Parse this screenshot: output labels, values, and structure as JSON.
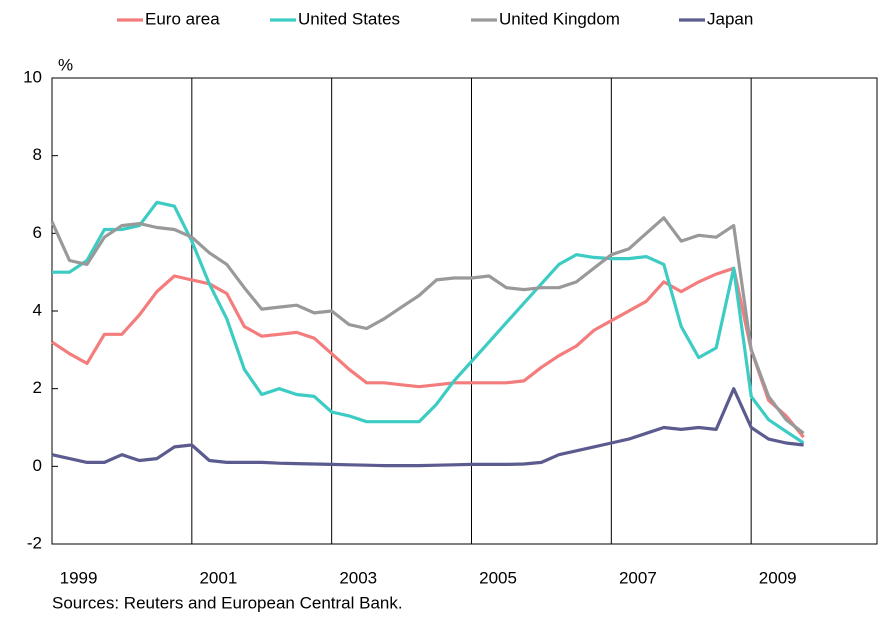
{
  "chart_data": {
    "type": "line",
    "ylabel": "%",
    "source": "Sources: Reuters and European Central Bank.",
    "x": [
      1999.0,
      1999.25,
      1999.5,
      1999.75,
      2000.0,
      2000.25,
      2000.5,
      2000.75,
      2001.0,
      2001.25,
      2001.5,
      2001.75,
      2002.0,
      2002.25,
      2002.5,
      2002.75,
      2003.0,
      2003.25,
      2003.5,
      2003.75,
      2004.0,
      2004.25,
      2004.5,
      2004.75,
      2005.0,
      2005.25,
      2005.5,
      2005.75,
      2006.0,
      2006.25,
      2006.5,
      2006.75,
      2007.0,
      2007.25,
      2007.5,
      2007.75,
      2008.0,
      2008.25,
      2008.5,
      2008.75,
      2009.0,
      2009.25,
      2009.5,
      2009.75
    ],
    "series": [
      {
        "name": "Euro area",
        "color": "#f47c7c",
        "values": [
          3.2,
          2.9,
          2.65,
          3.4,
          3.4,
          3.9,
          4.5,
          4.9,
          4.8,
          4.7,
          4.45,
          3.6,
          3.35,
          3.4,
          3.45,
          3.3,
          2.9,
          2.5,
          2.15,
          2.15,
          2.1,
          2.05,
          2.1,
          2.15,
          2.15,
          2.15,
          2.15,
          2.2,
          2.55,
          2.85,
          3.1,
          3.5,
          3.75,
          4.0,
          4.25,
          4.75,
          4.5,
          4.75,
          4.95,
          5.1,
          3.0,
          1.7,
          1.3,
          0.75
        ]
      },
      {
        "name": "United States",
        "color": "#3cccc4",
        "values": [
          5.0,
          5.0,
          5.3,
          6.1,
          6.1,
          6.2,
          6.8,
          6.7,
          5.8,
          4.7,
          3.8,
          2.5,
          1.85,
          2.0,
          1.85,
          1.8,
          1.4,
          1.3,
          1.15,
          1.15,
          1.15,
          1.15,
          1.6,
          2.2,
          2.7,
          3.2,
          3.7,
          4.2,
          4.7,
          5.2,
          5.45,
          5.38,
          5.35,
          5.35,
          5.4,
          5.2,
          3.6,
          2.8,
          3.05,
          5.1,
          1.8,
          1.2,
          0.9,
          0.6
        ]
      },
      {
        "name": "United Kingdom",
        "color": "#999999",
        "values": [
          6.3,
          5.3,
          5.2,
          5.9,
          6.2,
          6.25,
          6.15,
          6.1,
          5.9,
          5.5,
          5.2,
          4.6,
          4.05,
          4.1,
          4.15,
          3.95,
          4.0,
          3.65,
          3.55,
          3.8,
          4.1,
          4.4,
          4.8,
          4.85,
          4.85,
          4.9,
          4.6,
          4.55,
          4.6,
          4.6,
          4.75,
          5.1,
          5.45,
          5.6,
          6.0,
          6.4,
          5.8,
          5.95,
          5.9,
          6.2,
          3.0,
          1.8,
          1.2,
          0.85
        ]
      },
      {
        "name": "Japan",
        "color": "#5b5b8f",
        "values": [
          0.3,
          0.2,
          0.1,
          0.1,
          0.3,
          0.15,
          0.2,
          0.5,
          0.55,
          0.15,
          0.1,
          0.1,
          0.1,
          0.08,
          0.07,
          0.06,
          0.05,
          0.04,
          0.03,
          0.02,
          0.02,
          0.02,
          0.03,
          0.04,
          0.05,
          0.05,
          0.05,
          0.06,
          0.1,
          0.3,
          0.4,
          0.5,
          0.6,
          0.7,
          0.85,
          1.0,
          0.95,
          1.0,
          0.95,
          2.0,
          1.0,
          0.7,
          0.6,
          0.55
        ]
      }
    ],
    "xlim": [
      1999,
      2010.8
    ],
    "xticks": [
      1999,
      2001,
      2003,
      2005,
      2007,
      2009
    ],
    "ylim": [
      -2,
      10
    ],
    "yticks": [
      -2,
      0,
      2,
      4,
      6,
      8,
      10
    ],
    "grid": true,
    "legend": "top"
  }
}
